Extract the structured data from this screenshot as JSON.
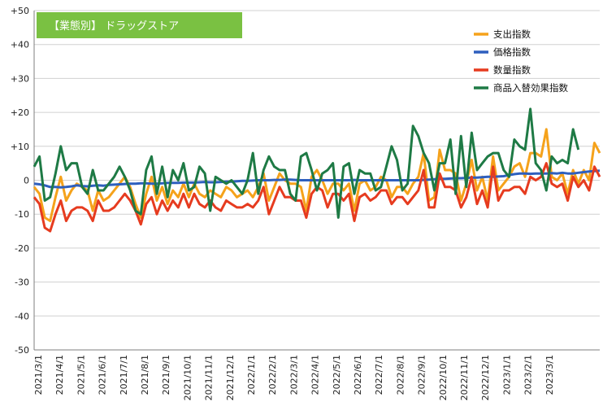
{
  "chart_data": {
    "type": "line",
    "title": "【業態別】 ドラッグストア",
    "xlabel": "",
    "ylabel": "",
    "ylim": [
      -50,
      50
    ],
    "yticks": [
      "-50",
      "-40",
      "-30",
      "-20",
      "-10",
      "0",
      "+10",
      "+20",
      "+30",
      "+40",
      "+50"
    ],
    "x_tick_labels": [
      "2021/3/1",
      "2021/4/1",
      "2021/5/1",
      "2021/6/1",
      "2021/7/1",
      "2021/8/1",
      "2021/9/1",
      "2021/10/1",
      "2021/11/1",
      "2021/12/1",
      "2022/1/1",
      "2022/2/1",
      "2022/3/1",
      "2022/4/1",
      "2022/5/1",
      "2022/6/1",
      "2022/7/1",
      "2022/8/1",
      "2022/9/1",
      "2022/10/1",
      "2022/11/1",
      "2022/12/1",
      "2023/1/1",
      "2023/2/1",
      "2023/3/1"
    ],
    "grid": true,
    "legend_position": "top-right",
    "series": [
      {
        "name": "支出指数",
        "color": "#f5a21b",
        "values": [
          -2,
          -4,
          -11,
          -12,
          -5,
          1,
          -6,
          -3,
          -1,
          -2,
          -3,
          -9,
          -3,
          -6,
          -5,
          -3,
          -1,
          1,
          -2,
          -7,
          -11,
          -4,
          1,
          -6,
          -2,
          -7,
          -3,
          -5,
          -1,
          -5,
          -1,
          -4,
          -5,
          -3,
          -4,
          -5,
          -2,
          -3,
          -5,
          -4,
          -3,
          -5,
          -2,
          2,
          -6,
          -2,
          2,
          0,
          -1,
          -1,
          -2,
          -9,
          1,
          3,
          0,
          -4,
          -1,
          -1,
          -3,
          -1,
          -9,
          -1,
          0,
          -3,
          -2,
          1,
          0,
          -5,
          -2,
          -2,
          -4,
          -1,
          1,
          8,
          -6,
          -5,
          9,
          3,
          3,
          2,
          -6,
          -1,
          6,
          -3,
          1,
          -6,
          7,
          -3,
          -1,
          1,
          4,
          5,
          1,
          8,
          8,
          7,
          15,
          1,
          0,
          2,
          -4,
          3,
          -1,
          3,
          0,
          11,
          8
        ]
      },
      {
        "name": "価格指数",
        "color": "#2e5fbe",
        "values": [
          -1,
          -1.2,
          -1.5,
          -2,
          -2,
          -2.1,
          -2,
          -1.8,
          -1.5,
          -1.7,
          -1.8,
          -1.6,
          -1.5,
          -1.6,
          -1.4,
          -1.3,
          -1.2,
          -1.1,
          -1,
          -1,
          -0.9,
          -0.9,
          -1,
          -1,
          -0.9,
          -0.8,
          -0.8,
          -0.8,
          -0.7,
          -0.7,
          -0.7,
          -0.6,
          -0.5,
          -0.6,
          -0.6,
          -0.5,
          -0.4,
          -0.4,
          -0.3,
          -0.2,
          -0.2,
          -0.1,
          0,
          0,
          0,
          0.1,
          0.1,
          0.2,
          0.2,
          0.1,
          0,
          0,
          0,
          0,
          0,
          0,
          0,
          0,
          0,
          0,
          0.1,
          0,
          0,
          0,
          0,
          0,
          0,
          0,
          0,
          0,
          0,
          0,
          0,
          0.1,
          0.2,
          0.3,
          0.4,
          0.4,
          0.5,
          0.6,
          0.6,
          0.7,
          0.8,
          0.8,
          0.9,
          1,
          1,
          1.1,
          1.2,
          1.5,
          1.8,
          2,
          2,
          1.9,
          2,
          2,
          2,
          2.1,
          2,
          2.2,
          2,
          2,
          2.2,
          2.4,
          2.6,
          2.7,
          2.8
        ]
      },
      {
        "name": "数量指数",
        "color": "#e63b1f",
        "values": [
          -5,
          -7,
          -14,
          -15,
          -10,
          -6,
          -12,
          -9,
          -8,
          -8,
          -9,
          -12,
          -6,
          -9,
          -9,
          -8,
          -6,
          -4,
          -6,
          -9,
          -13,
          -7,
          -5,
          -10,
          -6,
          -9,
          -6,
          -8,
          -4,
          -8,
          -4,
          -7,
          -8,
          -6,
          -8,
          -9,
          -6,
          -7,
          -8,
          -8,
          -7,
          -8,
          -6,
          -2,
          -10,
          -6,
          -2,
          -5,
          -5,
          -6,
          -6,
          -11,
          -4,
          -2,
          -3,
          -8,
          -4,
          -4,
          -6,
          -4,
          -12,
          -5,
          -4,
          -6,
          -5,
          -3,
          -3,
          -7,
          -5,
          -5,
          -7,
          -5,
          -3,
          3,
          -8,
          -8,
          2,
          -2,
          -2,
          -3,
          -8,
          -5,
          1,
          -7,
          -3,
          -8,
          4,
          -6,
          -3,
          -3,
          -2,
          -2,
          -4,
          1,
          0,
          1,
          5,
          -1,
          -2,
          -1,
          -6,
          1,
          -2,
          0,
          -3,
          4,
          1
        ]
      },
      {
        "name": "商品入替効果指数",
        "color": "#1e7a45",
        "values": [
          4,
          7,
          -6,
          -5,
          2,
          10,
          3,
          5,
          5,
          -2,
          -4,
          3,
          -3,
          -3,
          -1,
          1,
          4,
          1,
          -3,
          -9,
          -10,
          3,
          7,
          -4,
          4,
          -5,
          3,
          0,
          5,
          -3,
          -2,
          4,
          2,
          -9,
          1,
          0,
          -1,
          0,
          -2,
          -4,
          0,
          8,
          -4,
          3,
          7,
          4,
          3,
          3,
          -4,
          -6,
          7,
          8,
          3,
          -3,
          2,
          3,
          5,
          -11,
          4,
          5,
          -4,
          3,
          2,
          2,
          -3,
          -2,
          4,
          10,
          6,
          -3,
          -1,
          16,
          13,
          8,
          5,
          -3,
          5,
          5,
          12,
          -4,
          13,
          -2,
          14,
          3,
          5,
          7,
          8,
          8,
          3,
          1,
          12,
          10,
          9,
          21,
          5,
          3,
          -3,
          7,
          5,
          6,
          5,
          15,
          9
        ]
      }
    ]
  }
}
